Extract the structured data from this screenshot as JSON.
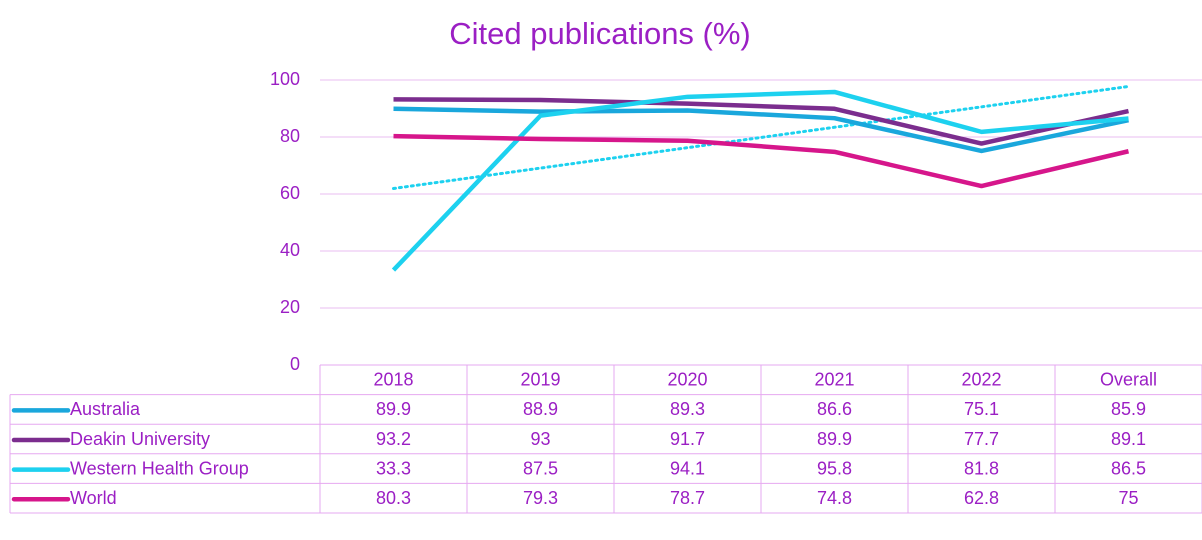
{
  "chart_data": {
    "type": "line",
    "title": "Cited publications (%)",
    "categories": [
      "2018",
      "2019",
      "2020",
      "2021",
      "2022",
      "Overall"
    ],
    "series": [
      {
        "name": "Australia",
        "color": "#1aa7dc",
        "values": [
          89.9,
          88.9,
          89.3,
          86.6,
          75.1,
          85.9
        ]
      },
      {
        "name": "Deakin University",
        "color": "#7b2d8e",
        "values": [
          93.2,
          93,
          91.7,
          89.9,
          77.7,
          89.1
        ]
      },
      {
        "name": "Western Health Group",
        "color": "#1dd1ef",
        "values": [
          33.3,
          87.5,
          94.1,
          95.8,
          81.8,
          86.5
        ]
      },
      {
        "name": "World",
        "color": "#d6168b",
        "values": [
          80.3,
          79.3,
          78.7,
          74.8,
          62.8,
          75
        ]
      }
    ],
    "ylim": [
      0,
      100
    ],
    "yticks": [
      0,
      20,
      40,
      60,
      80,
      100
    ],
    "grid": true,
    "data_table": true,
    "trendline_series": 2
  }
}
